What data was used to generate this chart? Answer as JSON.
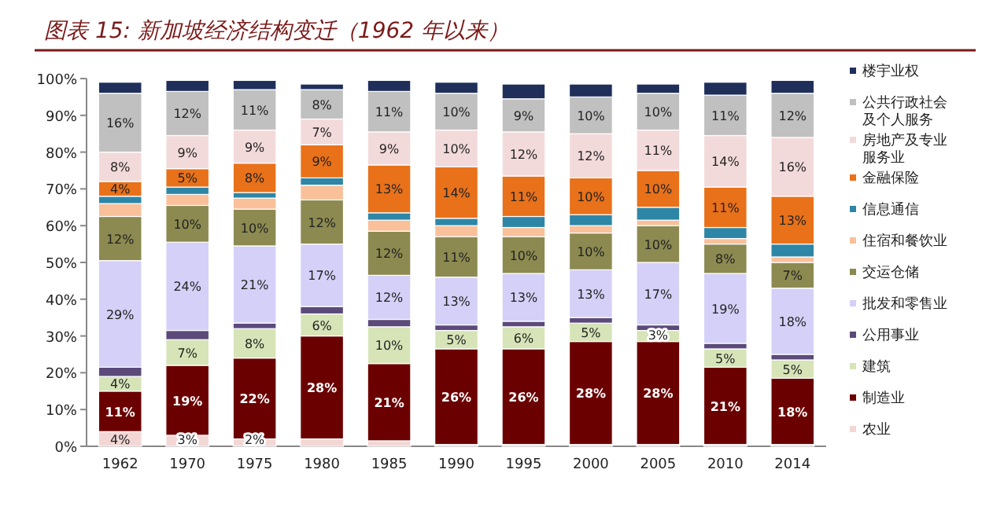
{
  "chart_data": {
    "type": "bar",
    "stacked": true,
    "title": "图表 15: 新加坡经济结构变迁（1962 年以来）",
    "categories": [
      "1962",
      "1970",
      "1975",
      "1980",
      "1985",
      "1990",
      "1995",
      "2000",
      "2005",
      "2010",
      "2014"
    ],
    "ylim": [
      0,
      100
    ],
    "yticks": [
      {
        "value": 0,
        "label": "0%"
      },
      {
        "value": 10,
        "label": "10%"
      },
      {
        "value": 20,
        "label": "20%"
      },
      {
        "value": 30,
        "label": "30%"
      },
      {
        "value": 40,
        "label": "40%"
      },
      {
        "value": 50,
        "label": "50%"
      },
      {
        "value": 60,
        "label": "60%"
      },
      {
        "value": 70,
        "label": "70%"
      },
      {
        "value": 80,
        "label": "80%"
      },
      {
        "value": 90,
        "label": "90%"
      },
      {
        "value": 100,
        "label": "100%"
      }
    ],
    "grid": false,
    "legend": "right",
    "series": [
      {
        "name": "农业",
        "color": "#f2d7d5",
        "values": [
          4,
          3,
          2,
          2,
          1.5,
          0.5,
          0.5,
          0.5,
          0.5,
          0.5,
          0.5
        ],
        "value_labels": [
          "4%",
          "3%",
          "2%",
          null,
          null,
          null,
          null,
          null,
          null,
          null,
          null
        ]
      },
      {
        "name": "制造业",
        "color": "#6b0000",
        "values": [
          11,
          19,
          22,
          28,
          21,
          26,
          26,
          28,
          28,
          21,
          18
        ],
        "value_labels": [
          "11%",
          "19%",
          "22%",
          "28%",
          "21%",
          "26%",
          "26%",
          "28%",
          "28%",
          "21%",
          "18%"
        ]
      },
      {
        "name": "建筑",
        "color": "#d6e4b8",
        "values": [
          4,
          7,
          8,
          6,
          10,
          5,
          6,
          5,
          3,
          5,
          5
        ],
        "value_labels": [
          "4%",
          "7%",
          "8%",
          "6%",
          "10%",
          "5%",
          "6%",
          "5%",
          "3%",
          "5%",
          "5%"
        ]
      },
      {
        "name": "公用事业",
        "color": "#5b4a7a",
        "values": [
          2.5,
          2.5,
          1.5,
          2,
          2,
          1.5,
          1.5,
          1.5,
          1.5,
          1.5,
          1.5
        ]
      },
      {
        "name": "批发和零售业",
        "color": "#d4d0f7",
        "values": [
          29,
          24,
          21,
          17,
          12,
          13,
          13,
          13,
          17,
          19,
          18
        ],
        "value_labels": [
          "29%",
          "24%",
          "21%",
          "17%",
          "12%",
          "13%",
          "13%",
          "13%",
          "17%",
          "19%",
          "18%"
        ]
      },
      {
        "name": "交运仓储",
        "color": "#8c8a50",
        "values": [
          12,
          10,
          10,
          12,
          12,
          11,
          10,
          10,
          10,
          8,
          7
        ],
        "value_labels": [
          "12%",
          "10%",
          "10%",
          "12%",
          "12%",
          "11%",
          "10%",
          "10%",
          "10%",
          "8%",
          "7%"
        ]
      },
      {
        "name": "住宿和餐饮业",
        "color": "#f9c09a",
        "values": [
          3.5,
          3,
          3,
          4,
          3,
          3,
          2.5,
          2,
          1.5,
          1.5,
          1.5
        ]
      },
      {
        "name": "信息通信",
        "color": "#2e86a6",
        "values": [
          2,
          2,
          1.5,
          2,
          2,
          2,
          3,
          3,
          3.5,
          3,
          3.5
        ]
      },
      {
        "name": "金融保险",
        "color": "#e8711a",
        "values": [
          4,
          5,
          8,
          9,
          13,
          14,
          11,
          10,
          10,
          11,
          13
        ],
        "value_labels": [
          "4%",
          "5%",
          "8%",
          "9%",
          "13%",
          "14%",
          "11%",
          "10%",
          "10%",
          "11%",
          "13%"
        ]
      },
      {
        "name": "房地产及专业服务业",
        "color": "#f3dada",
        "values": [
          8,
          9,
          9,
          7,
          9,
          10,
          12,
          12,
          11,
          14,
          16
        ],
        "value_labels": [
          "8%",
          "9%",
          "9%",
          "7%",
          "9%",
          "10%",
          "12%",
          "12%",
          "11%",
          "14%",
          "16%"
        ]
      },
      {
        "name": "公共行政社会及个人服务",
        "color": "#c0c0c0",
        "values": [
          16,
          12,
          11,
          8,
          11,
          10,
          9,
          10,
          10,
          11,
          12
        ],
        "value_labels": [
          "16%",
          "12%",
          "11%",
          "8%",
          "11%",
          "10%",
          "9%",
          "10%",
          "10%",
          "11%",
          "12%"
        ]
      },
      {
        "name": "楼宇业权",
        "color": "#1f2f5a",
        "values": [
          3,
          3,
          2.5,
          1.5,
          3,
          3,
          4,
          3.5,
          2.5,
          3.5,
          3.5
        ]
      }
    ]
  }
}
